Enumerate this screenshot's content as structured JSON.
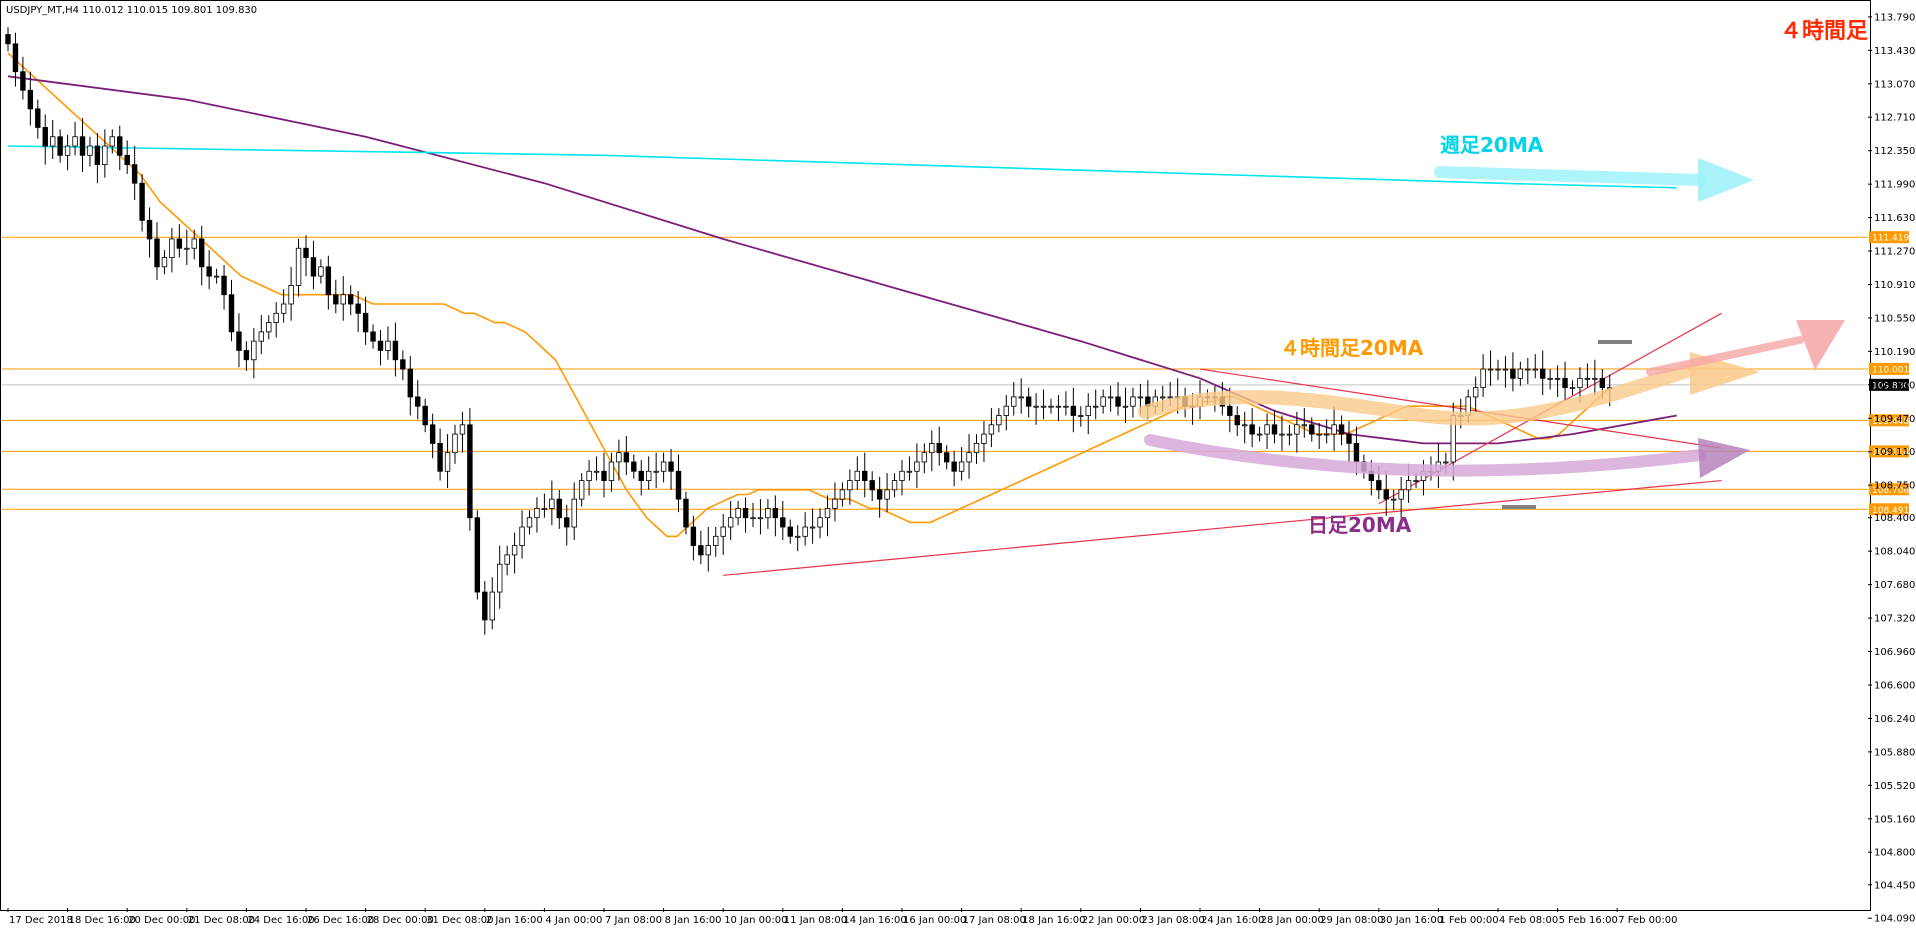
{
  "window": {
    "symbol_info": "USDJPY_MT,H4  110.012 110.015 109.801 109.830"
  },
  "colors": {
    "candle": "#000000",
    "ma4h": "#FF9900",
    "ma_daily": "#7B1E7A",
    "ma_weekly": "#00E5EE",
    "hline": "#FF9900",
    "trend": "#E8334A",
    "current_price_line": "#C0C0C0",
    "title_red": "#FF2A00",
    "label_orange": "#FF9900",
    "label_purple": "#8B2D8B",
    "label_cyan": "#00D5E8"
  },
  "annotations": {
    "timeframe_title": "４時間足",
    "weekly_ma_label": "週足20MA",
    "h4_ma_label": "４時間足20MA",
    "daily_ma_label": "日足20MA"
  },
  "chart_data": {
    "type": "candlestick",
    "ylim": [
      104.2,
      113.95
    ],
    "y_ticks": [
      "113.790",
      "113.430",
      "113.070",
      "112.710",
      "112.350",
      "111.990",
      "111.630",
      "111.270",
      "110.910",
      "110.550",
      "110.190",
      "109.830",
      "109.470",
      "109.110",
      "108.750",
      "108.400",
      "108.040",
      "107.680",
      "107.320",
      "106.960",
      "106.600",
      "106.240",
      "105.880",
      "105.520",
      "105.160",
      "104.800",
      "104.450",
      "104.090"
    ],
    "x_ticks": [
      "17 Dec 2018",
      "18 Dec 16:00",
      "20 Dec 00:00",
      "21 Dec 08:00",
      "24 Dec 16:00",
      "26 Dec 16:00",
      "28 Dec 00:00",
      "31 Dec 08:00",
      "2 Jan 16:00",
      "4 Jan 00:00",
      "7 Jan 08:00",
      "8 Jan 16:00",
      "10 Jan 00:00",
      "11 Jan 08:00",
      "14 Jan 16:00",
      "16 Jan 00:00",
      "17 Jan 08:00",
      "18 Jan 16:00",
      "22 Jan 00:00",
      "23 Jan 08:00",
      "24 Jan 16:00",
      "28 Jan 00:00",
      "29 Jan 08:00",
      "30 Jan 16:00",
      "1 Feb 00:00",
      "4 Feb 08:00",
      "5 Feb 16:00",
      "7 Feb 00:00"
    ],
    "x_tick_bars": [
      0,
      8,
      16,
      24,
      32,
      40,
      48,
      56,
      64,
      72,
      80,
      88,
      96,
      104,
      112,
      120,
      128,
      136,
      144,
      152,
      160,
      168,
      176,
      184,
      192,
      200,
      208,
      216
    ],
    "horizontal_levels": [
      {
        "value": 111.419,
        "label": "111.419"
      },
      {
        "value": 110.001,
        "label": "110.001"
      },
      {
        "value": 109.448,
        "label": "109.448"
      },
      {
        "value": 109.114,
        "label": "109.114"
      },
      {
        "value": 108.706,
        "label": "108.706"
      },
      {
        "value": 108.491,
        "label": "108.491"
      }
    ],
    "current_price": {
      "value": 109.83,
      "label": "109.830"
    },
    "closes": [
      113.5,
      113.2,
      113.0,
      112.8,
      112.6,
      112.4,
      112.5,
      112.3,
      112.4,
      112.5,
      112.3,
      112.4,
      112.2,
      112.4,
      112.5,
      112.3,
      112.2,
      112.0,
      111.6,
      111.4,
      111.1,
      111.2,
      111.4,
      111.3,
      111.3,
      111.4,
      111.1,
      111.0,
      111.0,
      110.8,
      110.4,
      110.2,
      110.1,
      110.3,
      110.4,
      110.5,
      110.6,
      110.7,
      110.9,
      111.3,
      111.2,
      111.0,
      111.1,
      110.8,
      110.7,
      110.8,
      110.7,
      110.6,
      110.4,
      110.3,
      110.2,
      110.3,
      110.1,
      110.0,
      109.7,
      109.6,
      109.4,
      109.2,
      108.9,
      109.1,
      109.3,
      109.4,
      108.4,
      107.6,
      107.3,
      107.6,
      107.9,
      108.0,
      108.1,
      108.3,
      108.4,
      108.5,
      108.5,
      108.6,
      108.4,
      108.3,
      108.6,
      108.8,
      108.9,
      108.9,
      108.8,
      109.0,
      109.1,
      109.0,
      108.9,
      108.8,
      108.9,
      108.9,
      109.0,
      108.9,
      108.6,
      108.3,
      108.1,
      108.0,
      108.1,
      108.2,
      108.3,
      108.4,
      108.5,
      108.4,
      108.4,
      108.4,
      108.5,
      108.4,
      108.3,
      108.2,
      108.2,
      108.3,
      108.3,
      108.4,
      108.5,
      108.6,
      108.7,
      108.8,
      108.9,
      108.8,
      108.7,
      108.6,
      108.7,
      108.8,
      108.9,
      108.9,
      109.0,
      109.1,
      109.2,
      109.1,
      109.0,
      108.9,
      109.0,
      109.1,
      109.2,
      109.3,
      109.4,
      109.5,
      109.6,
      109.7,
      109.7,
      109.6,
      109.6,
      109.6,
      109.6,
      109.6,
      109.6,
      109.5,
      109.5,
      109.6,
      109.6,
      109.7,
      109.7,
      109.6,
      109.6,
      109.7,
      109.7,
      109.6,
      109.7,
      109.7,
      109.7,
      109.7,
      109.6,
      109.6,
      109.7,
      109.7,
      109.7,
      109.6,
      109.5,
      109.4,
      109.4,
      109.3,
      109.3,
      109.4,
      109.3,
      109.3,
      109.3,
      109.4,
      109.4,
      109.3,
      109.3,
      109.3,
      109.4,
      109.3,
      109.2,
      109.0,
      108.9,
      108.8,
      108.7,
      108.6,
      108.6,
      108.7,
      108.8,
      108.8,
      108.9,
      108.9,
      109.0,
      109.0,
      109.5,
      109.5,
      109.7,
      109.8,
      110.0,
      110.0,
      110.0,
      110.0,
      109.9,
      110.0,
      110.0,
      110.0,
      109.9,
      109.9,
      109.9,
      109.8,
      109.8,
      109.9,
      109.9,
      109.9,
      109.8,
      109.8
    ],
    "ma4h": [
      113.4,
      113.3,
      113.2,
      113.1,
      113.0,
      112.9,
      112.8,
      112.7,
      112.6,
      112.5,
      112.4,
      112.3,
      112.2,
      112.1,
      111.95,
      111.8,
      111.7,
      111.6,
      111.5,
      111.4,
      111.3,
      111.2,
      111.1,
      111.0,
      110.95,
      110.9,
      110.85,
      110.8,
      110.8,
      110.8,
      110.8,
      110.8,
      110.8,
      110.8,
      110.8,
      110.75,
      110.7,
      110.7,
      110.7,
      110.7,
      110.7,
      110.7,
      110.7,
      110.7,
      110.65,
      110.6,
      110.6,
      110.55,
      110.5,
      110.5,
      110.45,
      110.4,
      110.3,
      110.2,
      110.1,
      109.9,
      109.7,
      109.5,
      109.3,
      109.1,
      108.9,
      108.7,
      108.55,
      108.4,
      108.3,
      108.2,
      108.2,
      108.3,
      108.4,
      108.5,
      108.55,
      108.6,
      108.65,
      108.65,
      108.7,
      108.7,
      108.7,
      108.7,
      108.7,
      108.7,
      108.65,
      108.6,
      108.6,
      108.6,
      108.55,
      108.5,
      108.5,
      108.45,
      108.4,
      108.35,
      108.35,
      108.35,
      108.4,
      108.45,
      108.5,
      108.55,
      108.6,
      108.65,
      108.7,
      108.75,
      108.8,
      108.85,
      108.9,
      108.95,
      109.0,
      109.05,
      109.1,
      109.15,
      109.2,
      109.25,
      109.3,
      109.35,
      109.4,
      109.45,
      109.5,
      109.55,
      109.6,
      109.6,
      109.65,
      109.65,
      109.7,
      109.7,
      109.65,
      109.6,
      109.55,
      109.5,
      109.45,
      109.4,
      109.35,
      109.3,
      109.3,
      109.3,
      109.3,
      109.35,
      109.4,
      109.45,
      109.5,
      109.55,
      109.6,
      109.6,
      109.6,
      109.6,
      109.6,
      109.6,
      109.6,
      109.55,
      109.5,
      109.45,
      109.4,
      109.35,
      109.3,
      109.25,
      109.25,
      109.3,
      109.4,
      109.5,
      109.6,
      109.7,
      109.8
    ],
    "ma_daily": [
      113.15,
      112.9,
      112.5,
      112.0,
      111.4,
      110.85,
      110.3,
      109.9,
      109.55,
      109.3,
      109.2,
      109.2,
      109.3,
      109.5
    ],
    "ma_daily_x": [
      0,
      24,
      48,
      72,
      96,
      120,
      144,
      160,
      170,
      180,
      190,
      200,
      210,
      224
    ],
    "ma_weekly": [
      112.4,
      112.35,
      112.3,
      112.2,
      112.1,
      112.0,
      111.95
    ],
    "ma_weekly_x": [
      0,
      40,
      80,
      120,
      160,
      200,
      224
    ],
    "trendlines": [
      {
        "from": [
          96,
          107.78
        ],
        "to": [
          230,
          108.8
        ]
      },
      {
        "from": [
          184,
          108.55
        ],
        "to": [
          230,
          110.6
        ]
      },
      {
        "from": [
          160,
          110.0
        ],
        "to": [
          230,
          109.15
        ]
      }
    ],
    "xlabel": "",
    "ylabel": ""
  }
}
